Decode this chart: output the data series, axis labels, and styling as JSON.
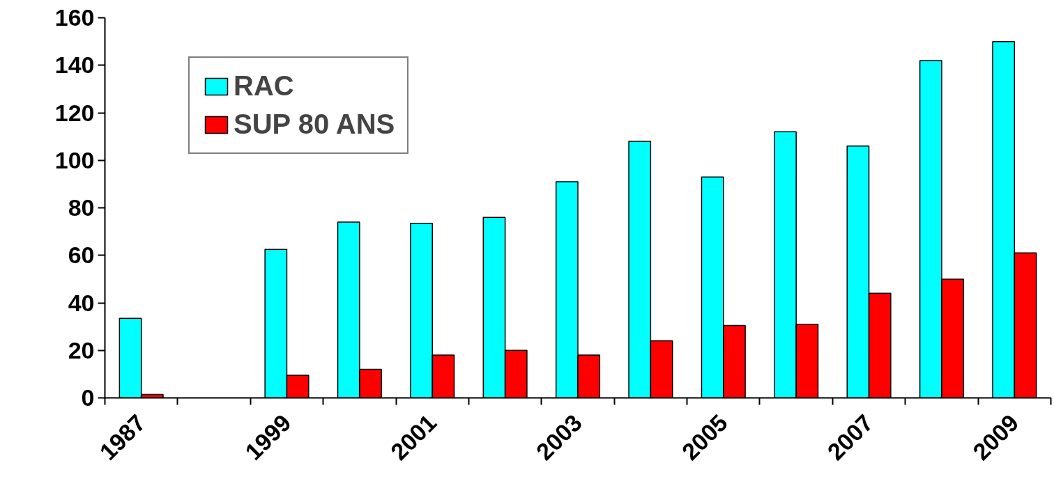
{
  "chart_data": {
    "type": "bar",
    "categories": [
      "1987",
      null,
      "1999",
      null,
      "2001",
      null,
      "2003",
      null,
      "2005",
      null,
      "2007",
      null,
      "2009"
    ],
    "series": [
      {
        "name": "RAC",
        "color": "#00ffff",
        "values": [
          33.5,
          null,
          62.5,
          74,
          73.5,
          76,
          91,
          108,
          93,
          112,
          106,
          142,
          150
        ]
      },
      {
        "name": "SUP 80 ANS",
        "color": "#ff0000",
        "values": [
          1.5,
          null,
          9.5,
          12,
          18,
          20,
          18,
          24,
          30.5,
          31,
          44,
          50,
          61
        ]
      }
    ],
    "ylim": [
      0,
      160
    ],
    "yticks": [
      0,
      20,
      40,
      60,
      80,
      100,
      120,
      140,
      160
    ],
    "grid": false,
    "legend": "top left"
  }
}
